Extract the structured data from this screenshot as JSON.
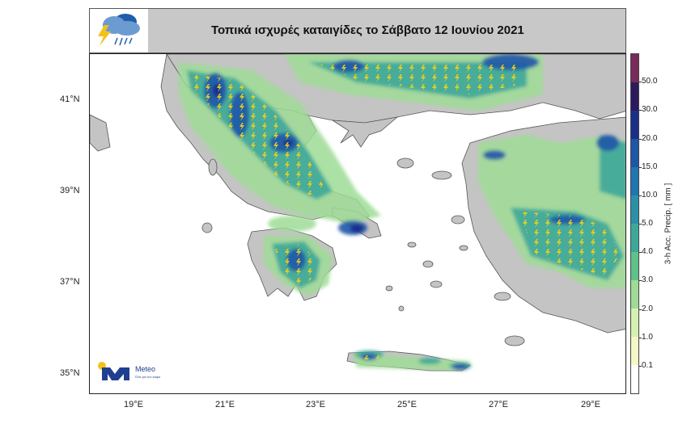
{
  "header": {
    "title": "Τοπικά ισχυρές καταιγίδες το Σάββατο 12 Ιουνίου 2021",
    "icon": "storm-cloud-icon"
  },
  "map": {
    "region": "Greece",
    "latitude_labels": [
      "41°N",
      "39°N",
      "37°N",
      "35°N"
    ],
    "longitude_labels": [
      "19°E",
      "21°E",
      "23°E",
      "25°E",
      "27°E",
      "29°E"
    ]
  },
  "colorbar": {
    "label": "3-h Acc. Precip. [ mm ]",
    "ticks": [
      "50.0",
      "30.0",
      "20.0",
      "15.0",
      "10.0",
      "5.0",
      "4.0",
      "3.0",
      "2.0",
      "1.0",
      "0.1"
    ],
    "colors": [
      "#7a2a5a",
      "#2b1a5e",
      "#1a2f8a",
      "#1f56a8",
      "#1f76b0",
      "#2a90a8",
      "#3da89a",
      "#5ec28a",
      "#9edc96",
      "#d6f0b0",
      "#f5f7c8",
      "#ffffff"
    ]
  },
  "logo": {
    "brand": "Meteo",
    "tagline": "Όλα για τον καιρό"
  }
}
